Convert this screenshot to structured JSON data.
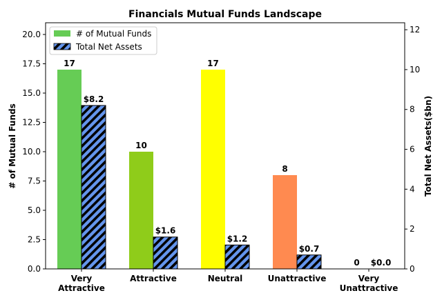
{
  "chart_data": {
    "type": "bar",
    "title": "Financials Mutual Funds Landscape",
    "categories": [
      [
        "Very",
        "Attractive"
      ],
      [
        "Attractive"
      ],
      [
        "Neutral"
      ],
      [
        "Unattractive"
      ],
      [
        "Very",
        "Unattractive"
      ]
    ],
    "series": [
      {
        "name": "# of Mutual Funds",
        "axis": "left",
        "values": [
          17,
          10,
          17,
          8,
          0
        ],
        "labels": [
          "17",
          "10",
          "17",
          "8",
          "0"
        ],
        "colors": [
          "#66cc55",
          "#8fcc1a",
          "#ffff00",
          "#ff8a50",
          "#ff3333"
        ]
      },
      {
        "name": "Total Net Assets",
        "axis": "right",
        "values": [
          8.2,
          1.6,
          1.2,
          0.7,
          0.0
        ],
        "labels": [
          "$8.2",
          "$1.6",
          "$1.2",
          "$0.7",
          "$0.0"
        ],
        "color": "#6495ed",
        "hatch": "diagonal"
      }
    ],
    "ylabel": "# of Mutual Funds",
    "ylim": [
      0,
      21
    ],
    "yticks": [
      "0.0",
      "2.5",
      "5.0",
      "7.5",
      "10.0",
      "12.5",
      "15.0",
      "17.5",
      "20.0"
    ],
    "y2label": "Total Net Assets($bn)",
    "y2lim": [
      0,
      12.35
    ],
    "y2ticks": [
      "0",
      "2",
      "4",
      "6",
      "8",
      "10",
      "12"
    ],
    "legend_position": "top-left",
    "grid": false
  }
}
